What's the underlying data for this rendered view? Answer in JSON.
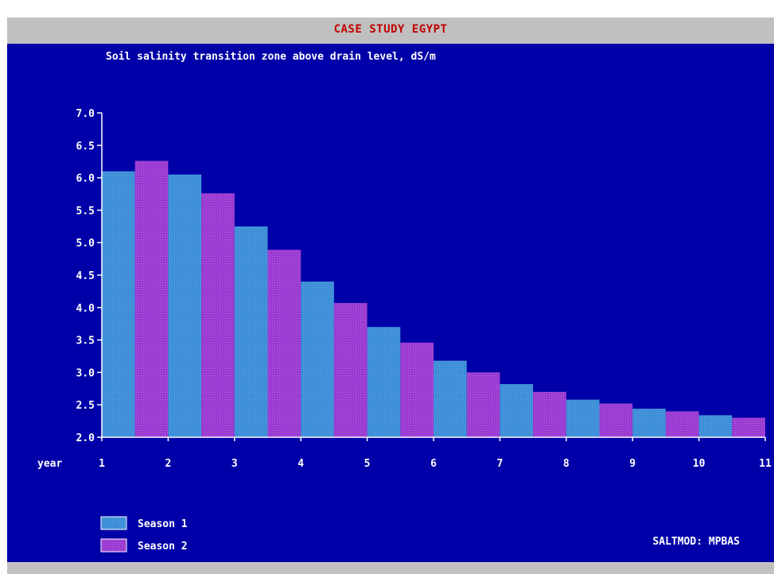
{
  "window": {
    "title": "CASE STUDY EGYPT"
  },
  "credit": "SALTMOD: MPBAS",
  "colors": {
    "background": "#0000a8",
    "frame": "#c0c0c0",
    "title_text": "#c00000",
    "text": "#ffffff",
    "season1": "#3c8ed8",
    "season2": "#9a3ad2"
  },
  "chart_data": {
    "type": "bar",
    "title": "Soil salinity transition zone above drain level, dS/m",
    "xlabel": "year",
    "ylabel": "",
    "ylim": [
      2.0,
      7.0
    ],
    "yticks": [
      "2.0",
      "2.5",
      "3.0",
      "3.5",
      "4.0",
      "4.5",
      "5.0",
      "5.5",
      "6.0",
      "6.5",
      "7.0"
    ],
    "xticks": [
      "1",
      "2",
      "3",
      "4",
      "5",
      "6",
      "7",
      "8",
      "9",
      "10",
      "11"
    ],
    "categories": [
      "1",
      "2",
      "3",
      "4",
      "5",
      "6",
      "7",
      "8",
      "9",
      "10"
    ],
    "series": [
      {
        "name": "Season 1",
        "values": [
          6.1,
          6.05,
          5.25,
          4.4,
          3.7,
          3.18,
          2.82,
          2.58,
          2.44,
          2.34
        ]
      },
      {
        "name": "Season 2",
        "values": [
          6.26,
          5.76,
          4.89,
          4.07,
          3.46,
          3.0,
          2.7,
          2.52,
          2.4,
          2.3
        ]
      }
    ],
    "grid": false,
    "legend": "bottom-left"
  }
}
